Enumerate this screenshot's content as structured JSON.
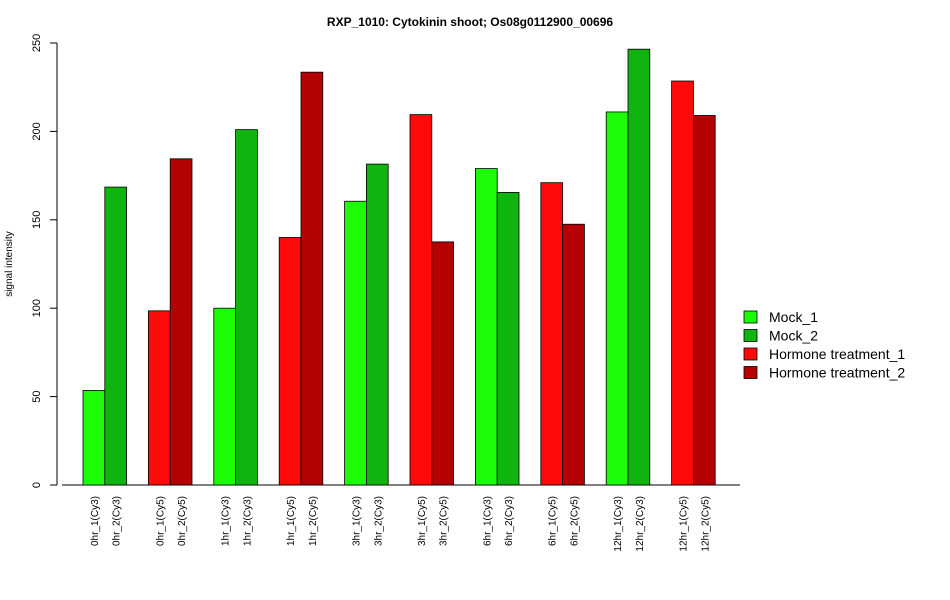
{
  "chart_data": {
    "type": "bar",
    "title": "RXP_1010: Cytokinin shoot; Os08g0112900_00696",
    "xlabel": "",
    "ylabel": "signal intensity",
    "ylim": [
      0,
      250
    ],
    "yticks": [
      0,
      50,
      100,
      150,
      200,
      250
    ],
    "grid": false,
    "legend_position": "right",
    "legend": [
      {
        "name": "Mock_1",
        "color": "#1bfc06"
      },
      {
        "name": "Mock_2",
        "color": "#0fb40f"
      },
      {
        "name": "Hormone treatment_1",
        "color": "#fe0a0a"
      },
      {
        "name": "Hormone treatment_2",
        "color": "#b40202"
      }
    ],
    "bars": [
      {
        "label": "0hr_1(Cy3)",
        "value": 53.5,
        "series": "Mock_1"
      },
      {
        "label": "0hr_2(Cy3)",
        "value": 168.5,
        "series": "Mock_2"
      },
      {
        "label": "0hr_1(Cy5)",
        "value": 98.5,
        "series": "Hormone treatment_1"
      },
      {
        "label": "0hr_2(Cy5)",
        "value": 184.5,
        "series": "Hormone treatment_2"
      },
      {
        "label": "1hr_1(Cy3)",
        "value": 100,
        "series": "Mock_1"
      },
      {
        "label": "1hr_2(Cy3)",
        "value": 201,
        "series": "Mock_2"
      },
      {
        "label": "1hr_1(Cy5)",
        "value": 140,
        "series": "Hormone treatment_1"
      },
      {
        "label": "1hr_2(Cy5)",
        "value": 233.5,
        "series": "Hormone treatment_2"
      },
      {
        "label": "3hr_1(Cy3)",
        "value": 160.5,
        "series": "Mock_1"
      },
      {
        "label": "3hr_2(Cy3)",
        "value": 181.5,
        "series": "Mock_2"
      },
      {
        "label": "3hr_1(Cy5)",
        "value": 209.5,
        "series": "Hormone treatment_1"
      },
      {
        "label": "3hr_2(Cy5)",
        "value": 137.5,
        "series": "Hormone treatment_2"
      },
      {
        "label": "6hr_1(Cy3)",
        "value": 179,
        "series": "Mock_1"
      },
      {
        "label": "6hr_2(Cy3)",
        "value": 165.5,
        "series": "Mock_2"
      },
      {
        "label": "6hr_1(Cy5)",
        "value": 171,
        "series": "Hormone treatment_1"
      },
      {
        "label": "6hr_2(Cy5)",
        "value": 147.5,
        "series": "Hormone treatment_2"
      },
      {
        "label": "12hr_1(Cy3)",
        "value": 211,
        "series": "Mock_1"
      },
      {
        "label": "12hr_2(Cy3)",
        "value": 246.5,
        "series": "Mock_2"
      },
      {
        "label": "12hr_1(Cy5)",
        "value": 228.5,
        "series": "Hormone treatment_1"
      },
      {
        "label": "12hr_2(Cy5)",
        "value": 209,
        "series": "Hormone treatment_2"
      }
    ]
  }
}
